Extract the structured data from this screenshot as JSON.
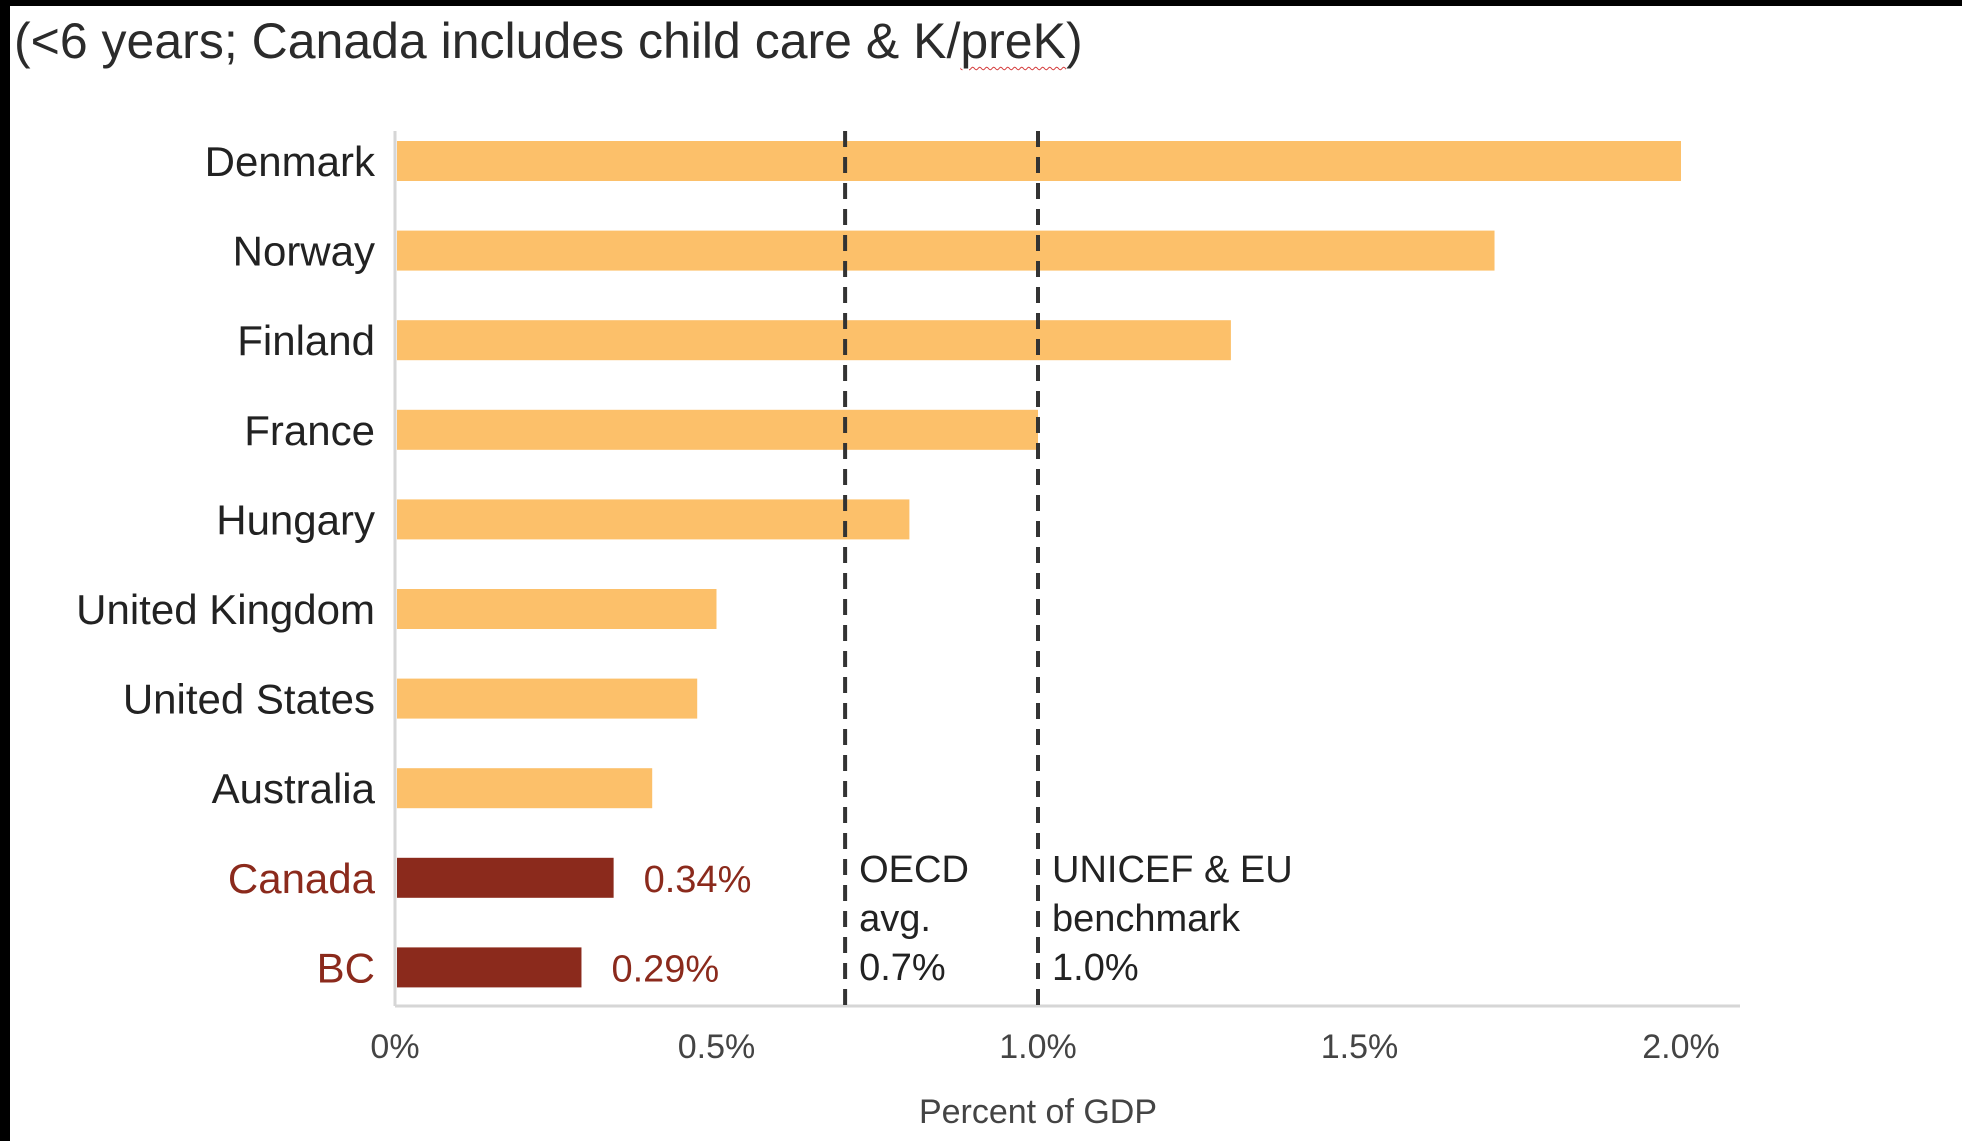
{
  "chart_data": {
    "type": "bar",
    "orientation": "horizontal",
    "subtitle_prefix": "(<6 years; Canada includes child care & K/",
    "subtitle_underlined": "preK",
    "subtitle_suffix": ")",
    "categories": [
      "Denmark",
      "Norway",
      "Finland",
      "France",
      "Hungary",
      "United Kingdom",
      "United States",
      "Australia",
      "Canada",
      "BC"
    ],
    "values": [
      2.0,
      1.71,
      1.3,
      1.0,
      0.8,
      0.5,
      0.47,
      0.4,
      0.34,
      0.29
    ],
    "highlight": [
      false,
      false,
      false,
      false,
      false,
      false,
      false,
      false,
      true,
      true
    ],
    "data_labels": [
      "",
      "",
      "",
      "",
      "",
      "",
      "",
      "",
      "0.34%",
      "0.29%"
    ],
    "xlabel": "Percent of GDP",
    "xlim": [
      0,
      2.1
    ],
    "x_ticks": [
      0,
      0.5,
      1.0,
      1.5,
      2.0
    ],
    "x_tick_labels": [
      "0%",
      "0.5%",
      "1.0%",
      "1.5%",
      "2.0%"
    ],
    "reference_lines": [
      {
        "value": 0.7,
        "label_lines": [
          "OECD",
          "avg.",
          "0.7%"
        ]
      },
      {
        "value": 1.0,
        "label_lines": [
          "UNICEF & EU",
          "benchmark",
          "1.0%"
        ]
      }
    ],
    "grid": false,
    "legend": "none",
    "colors": {
      "bar": "#fcc06a",
      "highlight_bar": "#8b2a1c",
      "highlight_text": "#8b2a1c",
      "reference_line": "#333333",
      "axis": "#d6d6d6"
    }
  }
}
